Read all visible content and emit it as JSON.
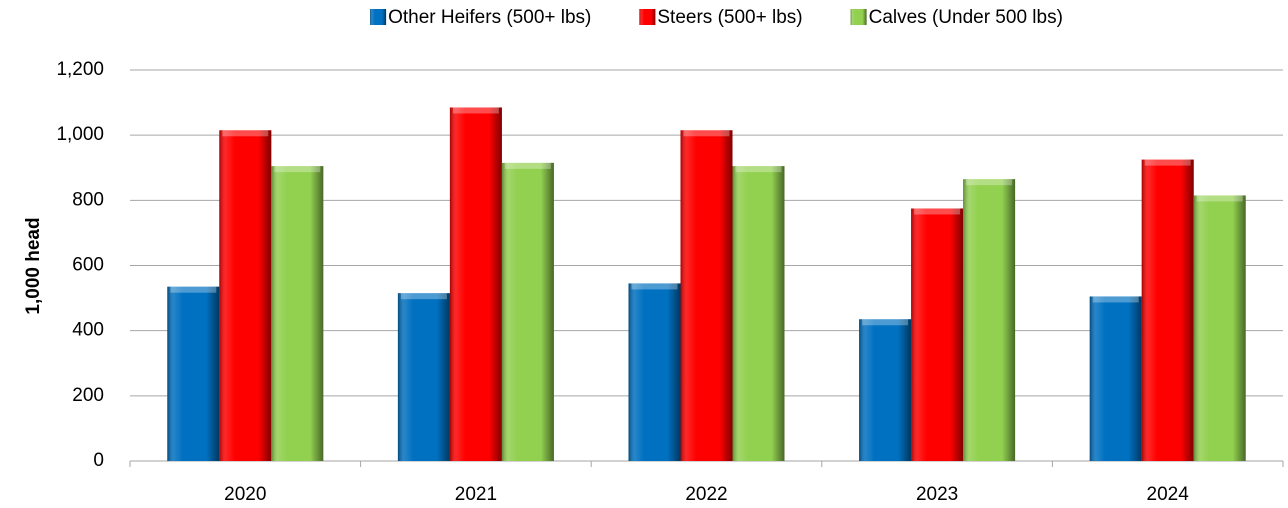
{
  "chart_data": {
    "type": "bar",
    "y_label": "1,000 head",
    "categories": [
      "2020",
      "2021",
      "2022",
      "2023",
      "2024"
    ],
    "series": [
      {
        "name": "Other Heifers (500+ lbs)",
        "color": "#0070c0",
        "values": [
          535,
          515,
          545,
          435,
          505
        ]
      },
      {
        "name": "Steers (500+ lbs)",
        "color": "#ff0000",
        "values": [
          1015,
          1085,
          1015,
          775,
          925
        ]
      },
      {
        "name": "Calves (Under 500 lbs)",
        "color": "#92d050",
        "values": [
          905,
          915,
          905,
          865,
          815
        ]
      }
    ],
    "ylim": [
      0,
      1200
    ],
    "yticks": [
      0,
      200,
      400,
      600,
      800,
      {
        "value": 1000,
        "label": "1,000"
      },
      {
        "value": 1200,
        "label": "1,200"
      }
    ],
    "grid": true,
    "legend": "top"
  }
}
